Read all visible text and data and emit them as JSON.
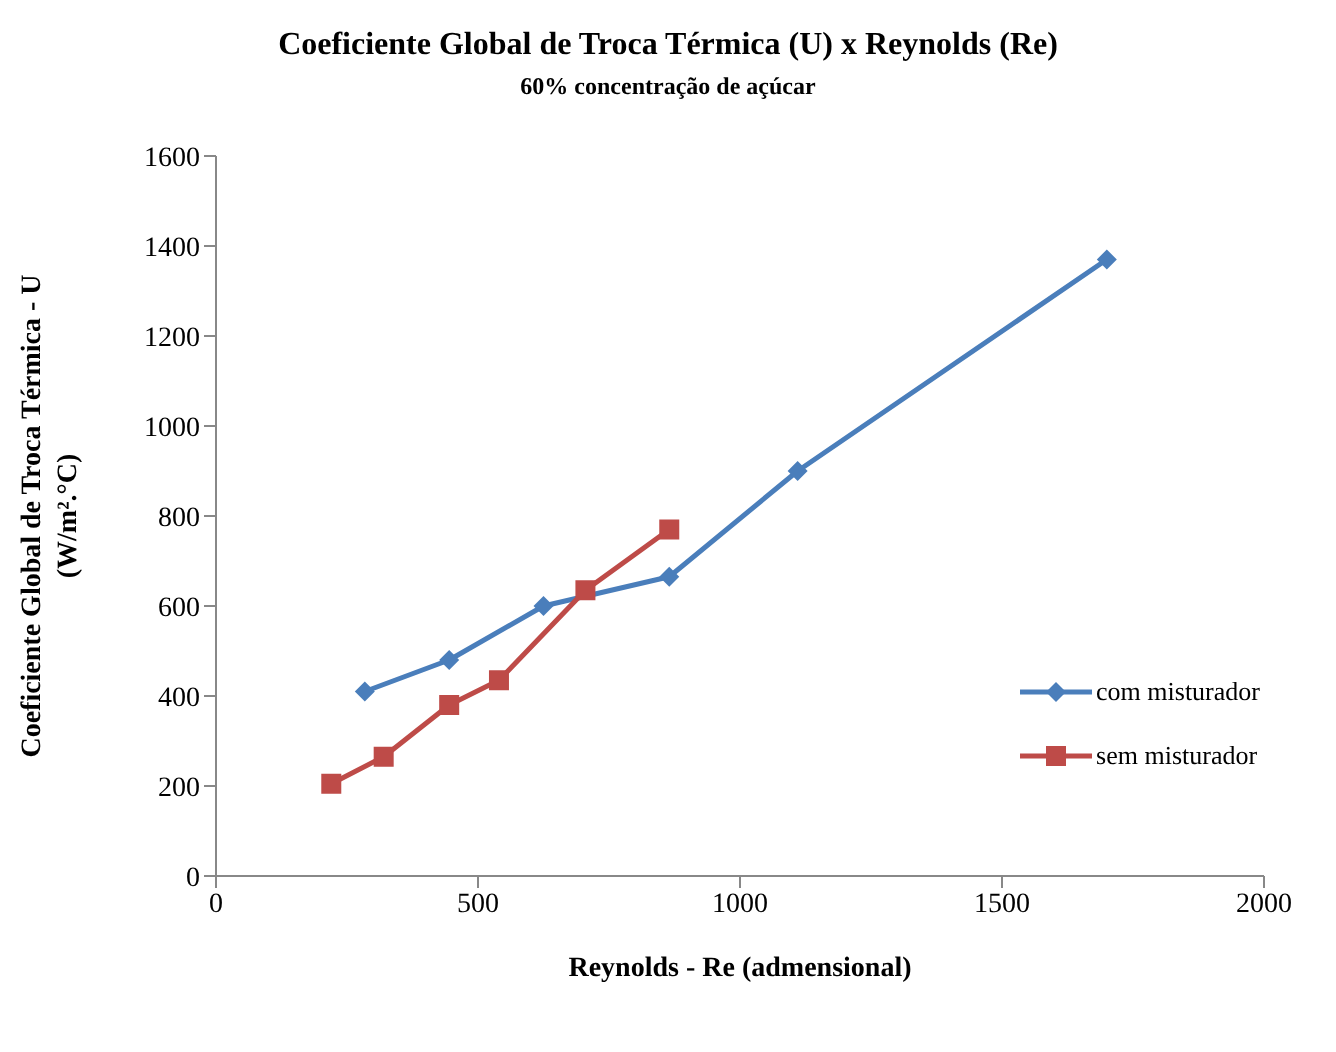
{
  "chart_data": {
    "type": "line",
    "title": "Coeficiente Global de Troca Térmica (U) x Reynolds (Re)",
    "subtitle": "60% concentração de açúcar",
    "xlabel": "Reynolds - Re (admensional)",
    "ylabel": "Coeficiente Global de Troca Térmica - U\n(W/m².°C)",
    "xlim": [
      0,
      2000
    ],
    "xticks": [
      0,
      500,
      1000,
      1500,
      2000
    ],
    "ylim": [
      0,
      1600
    ],
    "yticks": [
      0,
      200,
      400,
      600,
      800,
      1000,
      1200,
      1400,
      1600
    ],
    "grid": false,
    "legend": "right",
    "series": [
      {
        "name": "com misturador",
        "color": "#4a7ebb",
        "marker": "diamond",
        "x": [
          284,
          445,
          625,
          865,
          1110,
          1700
        ],
        "values": [
          410,
          480,
          600,
          665,
          900,
          1370
        ]
      },
      {
        "name": "sem misturador",
        "color": "#be4b48",
        "marker": "square",
        "x": [
          220,
          320,
          445,
          540,
          705,
          865
        ],
        "values": [
          205,
          265,
          380,
          435,
          635,
          770
        ]
      }
    ]
  }
}
